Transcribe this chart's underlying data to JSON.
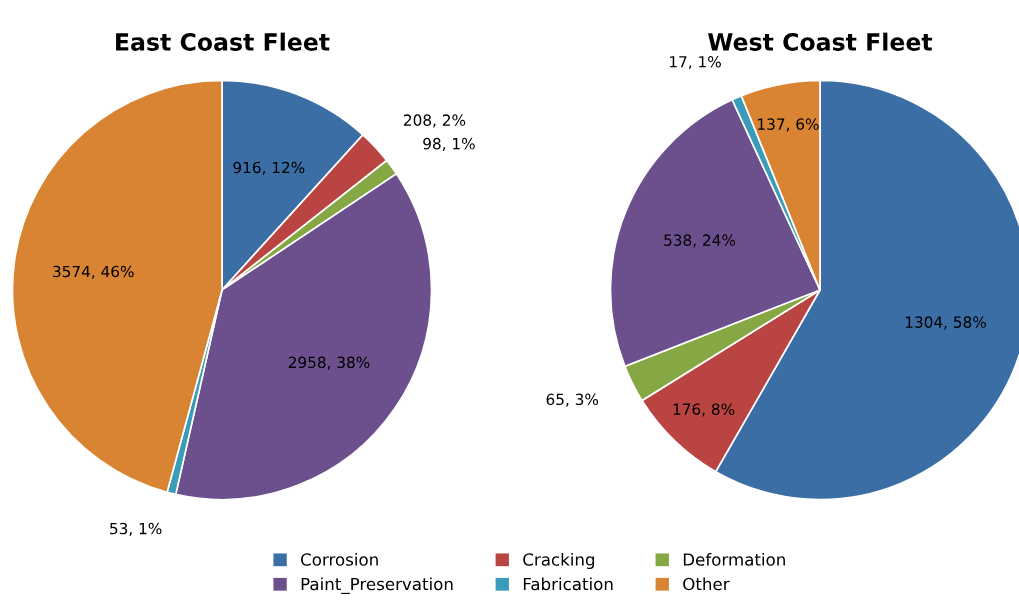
{
  "chart_data": [
    {
      "type": "pie",
      "title": "East Coast Fleet",
      "categories": [
        "Corrosion",
        "Cracking",
        "Deformation",
        "Paint_Preservation",
        "Fabrication",
        "Other"
      ],
      "values": [
        916,
        208,
        98,
        2958,
        53,
        3574
      ],
      "value_labels": [
        "916, 12%",
        "208, 2%",
        "98, 1%",
        "2958, 38%",
        "53, 1%",
        "3574, 46%"
      ],
      "colors": [
        "#3a6ea5",
        "#b94441",
        "#85a844",
        "#6c4f8d",
        "#3a9cb8",
        "#d98432"
      ],
      "legend": "bottom"
    },
    {
      "type": "pie",
      "title": "West Coast Fleet",
      "categories": [
        null,
        null,
        null,
        null,
        null,
        null
      ],
      "values": [
        1304,
        176,
        65,
        538,
        17,
        137
      ],
      "value_labels": [
        "1304, 58%",
        "176, 8%",
        "65, 3%",
        "538, 24%",
        "17, 1%",
        "137, 6%"
      ],
      "colors": [
        "#3a6ea5",
        "#b94441",
        "#85a844",
        "#6c4f8d",
        "#3a9cb8",
        "#d98432"
      ]
    }
  ]
}
